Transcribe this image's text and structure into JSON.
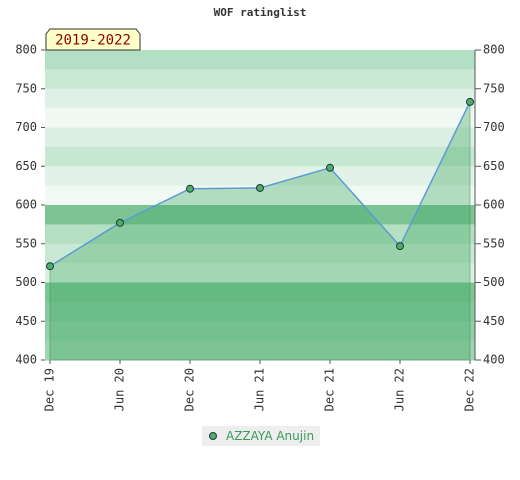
{
  "chart_data": {
    "type": "line",
    "title": "WOF ratinglist",
    "period_label": "2019-2022",
    "categories": [
      "Dec 19",
      "Jun 20",
      "Dec 20",
      "Jun 21",
      "Dec 21",
      "Jun 22",
      "Dec 22"
    ],
    "series": [
      {
        "name": "AZZAYA Anujin",
        "color": "#5b9bd5",
        "marker_color": "#4caf64",
        "values": [
          521,
          577,
          621,
          622,
          648,
          547,
          733
        ]
      }
    ],
    "ylim": [
      400,
      800
    ],
    "yticks": [
      400,
      450,
      500,
      550,
      600,
      650,
      700,
      750,
      800
    ],
    "y2lim": [
      400,
      800
    ],
    "y2ticks": [
      400,
      450,
      500,
      550,
      600,
      650,
      700,
      750,
      800
    ],
    "legend": "bottom"
  }
}
